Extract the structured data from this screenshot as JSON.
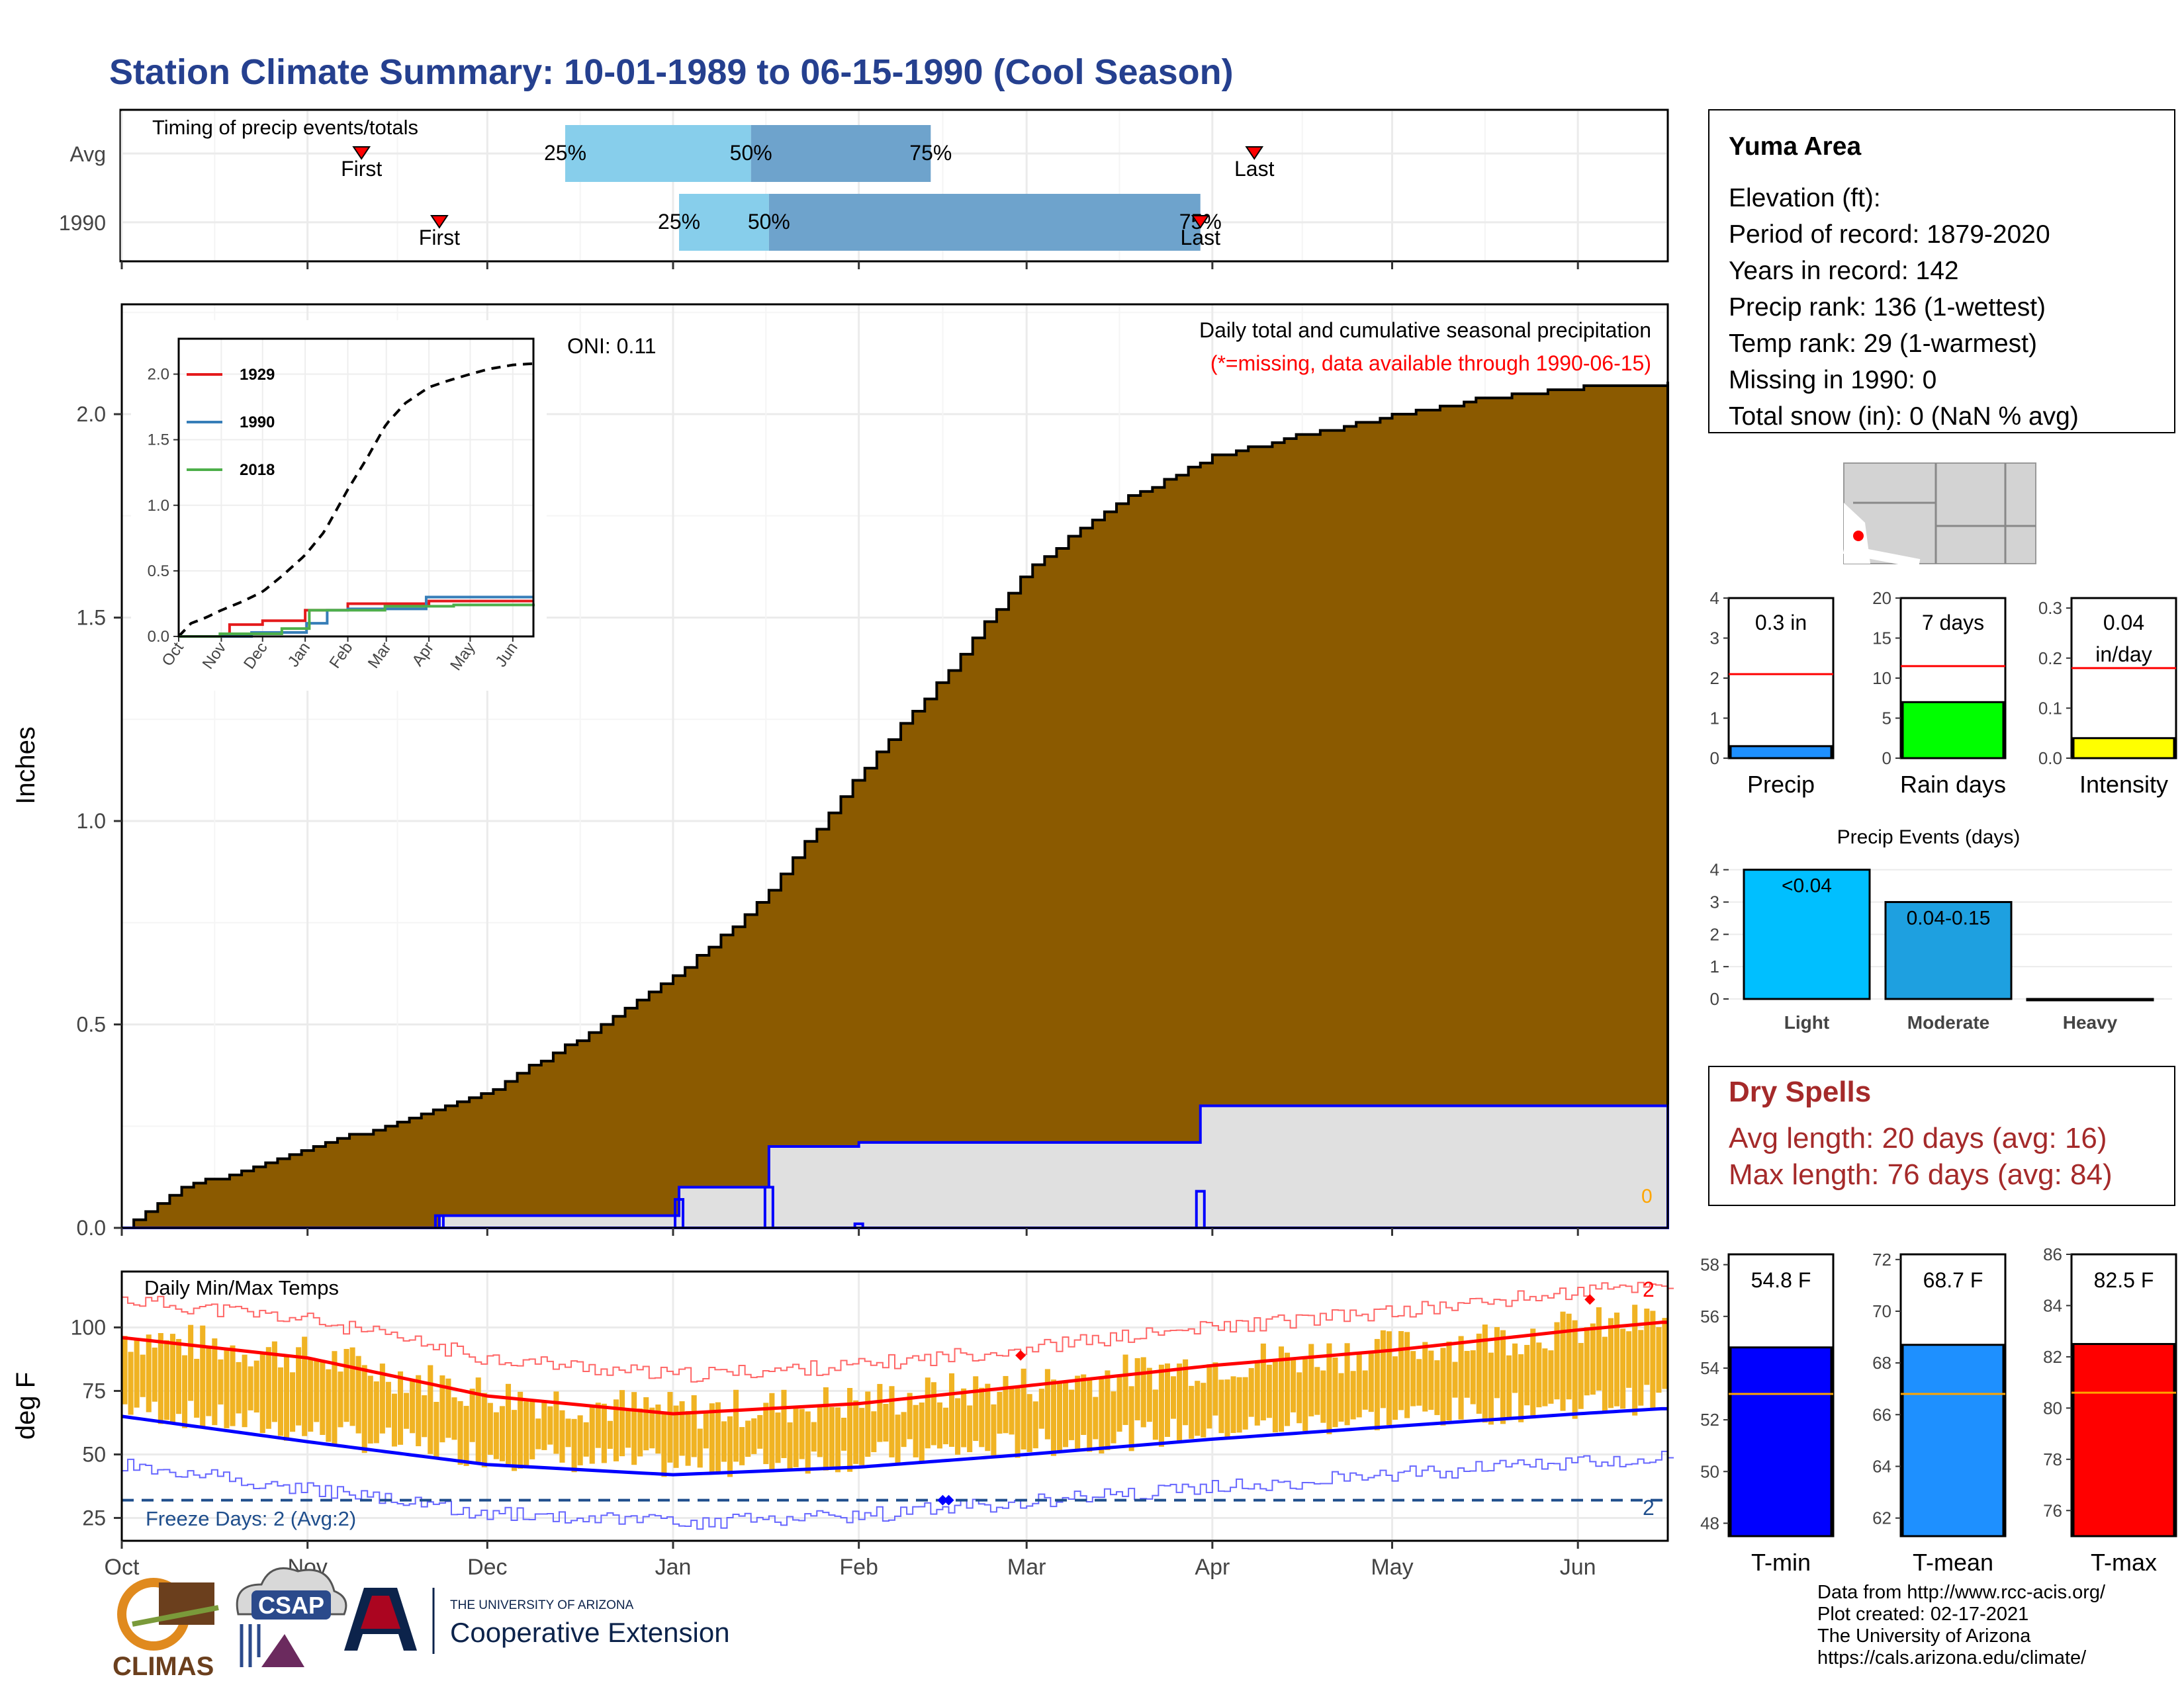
{
  "title": "Station Climate Summary: 10-01-1989 to 06-15-1990 (Cool Season)",
  "colors": {
    "title": "#25408f",
    "brown": "#8b5a00",
    "gray_fill": "#e0e0e0",
    "blue": "#0000ff",
    "red": "#ff0000",
    "gold": "#f0b323",
    "light_blue": "#87ceeb",
    "mid_blue": "#6ea3cc",
    "dry_spells": "#a52a2a",
    "freeze": "#1f4e8c"
  },
  "timing": {
    "title": "Timing of precip events/totals",
    "months": [
      "Oct",
      "Nov",
      "Dec",
      "Jan",
      "Feb",
      "Mar",
      "Apr",
      "May",
      "Jun"
    ],
    "rows": [
      {
        "label": "Avg",
        "first": "11-10",
        "first_label": "First",
        "p25": "12-14",
        "p50": "01-14",
        "p75": "02-13",
        "last": "04-08",
        "last_label": "Last",
        "labels": [
          "25%",
          "50%",
          "75%"
        ]
      },
      {
        "label": "1990",
        "first": "11-23",
        "first_label": "First",
        "p25": "01-02",
        "p50": "01-17",
        "p75": "03-30",
        "last": "03-30",
        "last_label": "Last",
        "labels": [
          "25%",
          "50%",
          "75%"
        ]
      }
    ]
  },
  "precip_panel": {
    "ylabel": "Inches",
    "yticks": [
      "0.0",
      "0.5",
      "1.0",
      "1.5",
      "2.0"
    ],
    "x_months": [
      "Oct",
      "Nov",
      "Dec",
      "Jan",
      "Feb",
      "Mar",
      "Apr",
      "May",
      "Jun"
    ],
    "caption": "Daily total and cumulative seasonal precipitation",
    "missing_note": "(*=missing, data available through 1990-06-15)",
    "oni": "ONI: 0.11",
    "missing_count": "0",
    "inset": {
      "yticks": [
        "0.0",
        "0.5",
        "1.0",
        "1.5",
        "2.0"
      ],
      "xticks": [
        "Oct",
        "Nov",
        "Dec",
        "Jan",
        "Feb",
        "Mar",
        "Apr",
        "May",
        "Jun"
      ],
      "legend": [
        "1929",
        "1990",
        "2018"
      ],
      "legend_colors": [
        "#e41a1c",
        "#377eb8",
        "#4daf4a"
      ]
    }
  },
  "temp_panel": {
    "ylabel": "deg F",
    "title": "Daily Min/Max Temps",
    "yticks": [
      "25",
      "50",
      "75",
      "100"
    ],
    "x_months": [
      "Oct",
      "Nov",
      "Dec",
      "Jan",
      "Feb",
      "Mar",
      "Apr",
      "May",
      "Jun"
    ],
    "freeze_text": "Freeze Days: 2 (Avg:2)",
    "record_high_count": "2",
    "freeze_count": "2"
  },
  "station": {
    "name": "Yuma Area",
    "lines": [
      "Elevation (ft):",
      "Period of record: 1879-2020",
      "Years in record: 142",
      "Precip rank: 136 (1-wettest)",
      "Temp rank: 29 (1-warmest)",
      "Missing in 1990: 0",
      "Total snow (in): 0 (NaN % avg)"
    ]
  },
  "mini_bars": [
    {
      "label": "Precip",
      "value_text": "0.3 in",
      "yticks": [
        "0",
        "1",
        "2",
        "3",
        "4"
      ],
      "ymax": 4,
      "value": 0.3,
      "avg": 2.1,
      "color": "#1e90ff"
    },
    {
      "label": "Rain days",
      "value_text": "7 days",
      "yticks": [
        "0",
        "5",
        "10",
        "15",
        "20"
      ],
      "ymax": 20,
      "value": 7,
      "avg": 11.5,
      "color": "#00ff00"
    },
    {
      "label": "Intensity",
      "value_text_1": "0.04",
      "value_text_2": "in/day",
      "yticks": [
        "0.0",
        "0.1",
        "0.2",
        "0.3"
      ],
      "ymax": 0.32,
      "value": 0.04,
      "avg": 0.18,
      "color": "#ffff00"
    }
  ],
  "events": {
    "title": "Precip Events (days)",
    "yticks": [
      "0",
      "1",
      "2",
      "3",
      "4"
    ],
    "categories": [
      "Light",
      "Moderate",
      "Heavy"
    ],
    "values": [
      4,
      3,
      0
    ],
    "bar_labels": [
      "<0.04",
      "0.04-0.15",
      ""
    ]
  },
  "dry_spells": {
    "title": "Dry Spells",
    "avg": "Avg length: 20 days (avg: 16)",
    "max": "Max length: 76 days (avg: 84)"
  },
  "temp_bars": [
    {
      "label": "T-min",
      "value_text": "54.8 F",
      "yticks": [
        "48",
        "50",
        "52",
        "54",
        "56",
        "58"
      ],
      "ymin": 47.5,
      "ymax": 58.4,
      "value": 54.8,
      "avg": 53.0,
      "color": "#0000ff"
    },
    {
      "label": "T-mean",
      "value_text": "68.7 F",
      "yticks": [
        "62",
        "64",
        "66",
        "68",
        "70",
        "72"
      ],
      "ymin": 61.3,
      "ymax": 72.2,
      "value": 68.7,
      "avg": 66.8,
      "color": "#1e90ff"
    },
    {
      "label": "T-max",
      "value_text": "82.5 F",
      "yticks": [
        "76",
        "78",
        "80",
        "82",
        "84",
        "86"
      ],
      "ymin": 75.0,
      "ymax": 86.0,
      "value": 82.5,
      "avg": 80.6,
      "color": "#ff0000"
    }
  ],
  "footer": [
    "Data from http://www.rcc-acis.org/",
    "Plot created: 02-17-2021",
    "The University of Arizona",
    "https://cals.arizona.edu/climate/"
  ],
  "logos": {
    "climas": "CLIMAS",
    "csap": "CSAP",
    "ua_small": "THE UNIVERSITY OF ARIZONA",
    "ua_big": "Cooperative Extension"
  },
  "chart_data": [
    {
      "type": "bar",
      "title": "Timing of precip events/totals",
      "categories": [
        "Avg",
        "1990"
      ],
      "series": [
        {
          "name": "First",
          "values": [
            "11-10",
            "11-23"
          ]
        },
        {
          "name": "25%",
          "values": [
            "12-14",
            "01-02"
          ]
        },
        {
          "name": "50%",
          "values": [
            "01-14",
            "01-17"
          ]
        },
        {
          "name": "75%",
          "values": [
            "02-13",
            "03-30"
          ]
        },
        {
          "name": "Last",
          "values": [
            "04-08",
            "03-30"
          ]
        }
      ]
    },
    {
      "type": "area",
      "title": "Daily total and cumulative seasonal precipitation",
      "ylabel": "Inches",
      "ylim": [
        0,
        2.27
      ],
      "series": [
        {
          "name": "Average cumulative",
          "x": [
            "10-01",
            "10-10",
            "10-20",
            "11-01",
            "11-15",
            "12-01",
            "12-15",
            "01-01",
            "01-15",
            "02-01",
            "02-15",
            "03-01",
            "03-15",
            "04-01",
            "04-15",
            "05-01",
            "05-15",
            "06-01",
            "06-15"
          ],
          "values": [
            0.0,
            0.1,
            0.14,
            0.2,
            0.26,
            0.34,
            0.46,
            0.62,
            0.8,
            1.12,
            1.36,
            1.62,
            1.78,
            1.9,
            1.95,
            2.0,
            2.04,
            2.07,
            2.08
          ]
        },
        {
          "name": "1990 cumulative",
          "x": [
            "10-01",
            "11-23",
            "01-02",
            "01-17",
            "02-01",
            "03-30",
            "06-15"
          ],
          "values": [
            0.0,
            0.03,
            0.1,
            0.2,
            0.21,
            0.3,
            0.3
          ]
        }
      ]
    },
    {
      "type": "line",
      "title": "Daily Min/Max Temps",
      "ylabel": "deg F",
      "ylim": [
        16,
        122
      ],
      "series": [
        {
          "name": "Normal max",
          "x": [
            "10-01",
            "11-01",
            "12-01",
            "01-01",
            "02-01",
            "03-01",
            "04-01",
            "05-01",
            "06-01",
            "06-15"
          ],
          "values": [
            96,
            88,
            73,
            66,
            70,
            77,
            85,
            91,
            99,
            102
          ]
        },
        {
          "name": "Normal min",
          "x": [
            "10-01",
            "11-01",
            "12-01",
            "01-01",
            "02-01",
            "03-01",
            "04-01",
            "05-01",
            "06-01",
            "06-15"
          ],
          "values": [
            65,
            55,
            46,
            42,
            45,
            50,
            56,
            61,
            66,
            68
          ]
        }
      ]
    },
    {
      "type": "bar",
      "title": "Precip Events (days)",
      "categories": [
        "Light",
        "Moderate",
        "Heavy"
      ],
      "values": [
        4,
        3,
        0
      ]
    }
  ]
}
